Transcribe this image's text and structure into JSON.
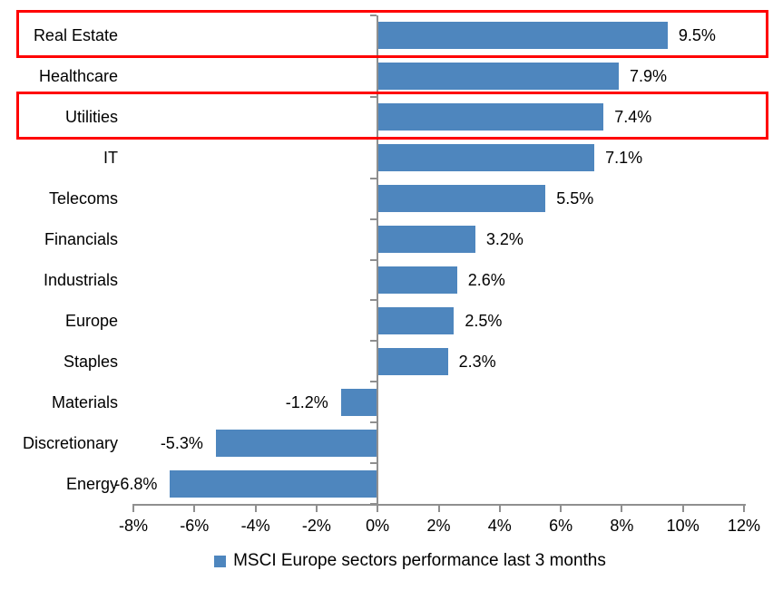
{
  "chart_data": {
    "type": "bar",
    "orientation": "horizontal",
    "title": "",
    "xlabel": "",
    "ylabel": "",
    "categories": [
      "Real Estate",
      "Healthcare",
      "Utilities",
      "IT",
      "Telecoms",
      "Financials",
      "Industrials",
      "Europe",
      "Staples",
      "Materials",
      "Discretionary",
      "Energy"
    ],
    "values": [
      9.5,
      7.9,
      7.4,
      7.1,
      5.5,
      3.2,
      2.6,
      2.5,
      2.3,
      -1.2,
      -5.3,
      -6.8
    ],
    "value_labels": [
      "9.5%",
      "7.9%",
      "7.4%",
      "7.1%",
      "5.5%",
      "3.2%",
      "2.6%",
      "2.5%",
      "2.3%",
      "-1.2%",
      "-5.3%",
      "-6.8%"
    ],
    "highlighted_categories": [
      "Real Estate",
      "Utilities"
    ],
    "xlim": [
      -8,
      12
    ],
    "x_tick_step": 2,
    "x_tick_labels": [
      "-8%",
      "-6%",
      "-4%",
      "-2%",
      "0%",
      "2%",
      "4%",
      "6%",
      "8%",
      "10%",
      "12%"
    ],
    "grid": false,
    "legend_position": "bottom",
    "legend": [
      {
        "label": "MSCI Europe sectors performance last 3 months",
        "color": "#4E86BE"
      }
    ],
    "colors": {
      "bar": "#4E86BE",
      "highlight_box": "#FF0000",
      "axis": "#8F8F8F",
      "text": "#000000",
      "background": "#FFFFFF"
    }
  }
}
